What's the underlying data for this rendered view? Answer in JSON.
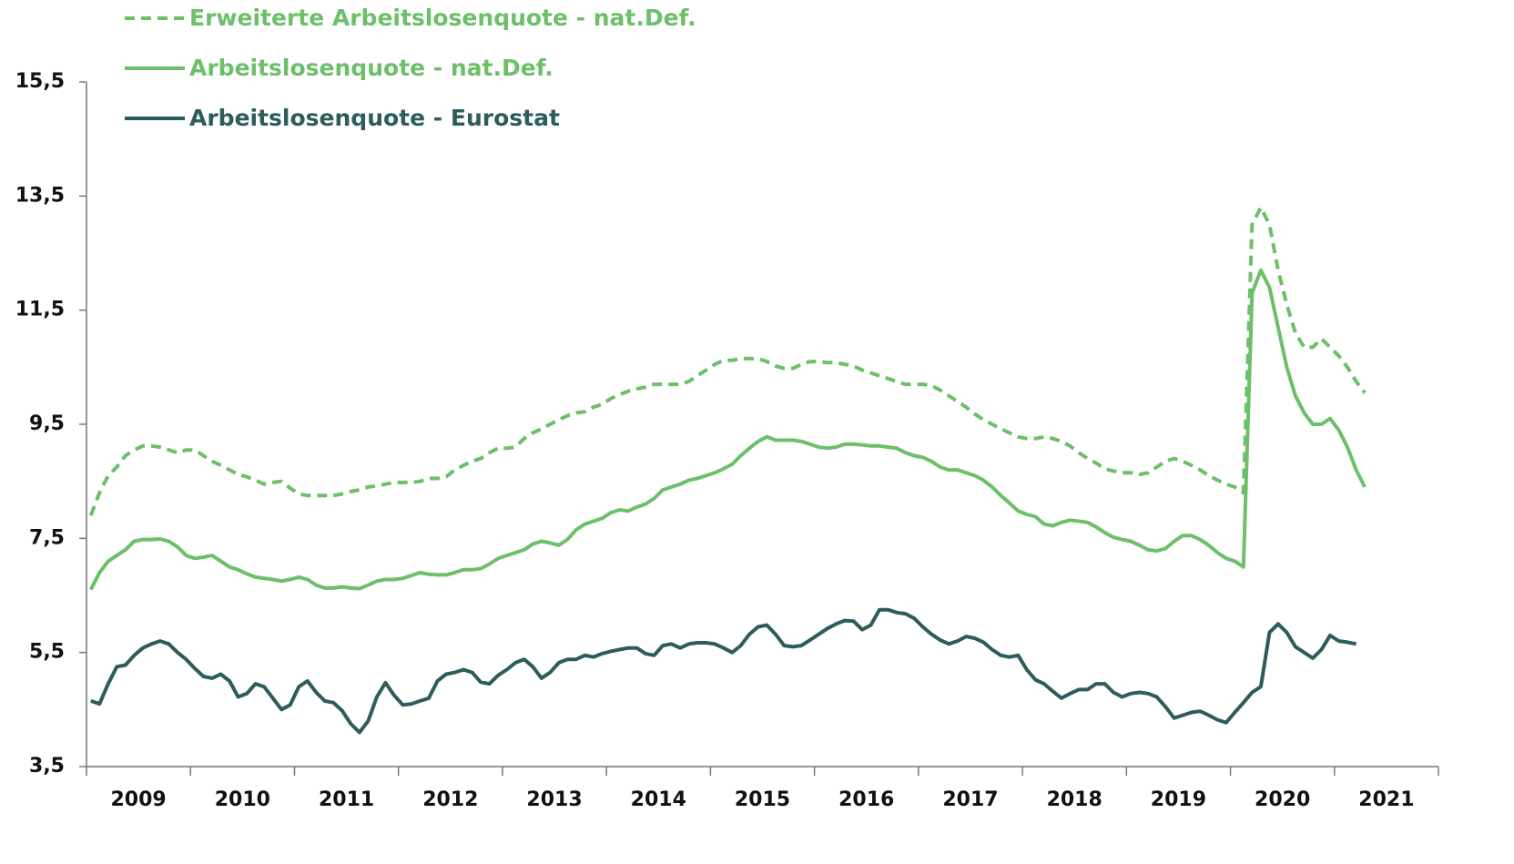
{
  "chart_data": {
    "type": "line",
    "categories": [
      "2009",
      null,
      null,
      null,
      null,
      null,
      null,
      null,
      null,
      null,
      null,
      null,
      "2010",
      null,
      null,
      null,
      null,
      null,
      null,
      null,
      null,
      null,
      null,
      null,
      "2011",
      null,
      null,
      null,
      null,
      null,
      null,
      null,
      null,
      null,
      null,
      null,
      "2012",
      null,
      null,
      null,
      null,
      null,
      null,
      null,
      null,
      null,
      null,
      null,
      "2013",
      null,
      null,
      null,
      null,
      null,
      null,
      null,
      null,
      null,
      null,
      null,
      "2014",
      null,
      null,
      null,
      null,
      null,
      null,
      null,
      null,
      null,
      null,
      null,
      "2015",
      null,
      null,
      null,
      null,
      null,
      null,
      null,
      null,
      null,
      null,
      null,
      "2016",
      null,
      null,
      null,
      null,
      null,
      null,
      null,
      null,
      null,
      null,
      null,
      "2017",
      null,
      null,
      null,
      null,
      null,
      null,
      null,
      null,
      null,
      null,
      null,
      "2018",
      null,
      null,
      null,
      null,
      null,
      null,
      null,
      null,
      null,
      null,
      null,
      "2019",
      null,
      null,
      null,
      null,
      null,
      null,
      null,
      null,
      null,
      null,
      null,
      "2020",
      null,
      null,
      null,
      null,
      null,
      null,
      null,
      null,
      null,
      null,
      null,
      "2021",
      null,
      null,
      null
    ],
    "ylim": [
      3.5,
      15.5
    ],
    "yticks": [
      {
        "value": 3.5,
        "label": "3,5"
      },
      {
        "value": 5.5,
        "label": "5,5"
      },
      {
        "value": 7.5,
        "label": "7,5"
      },
      {
        "value": 9.5,
        "label": "9,5"
      },
      {
        "value": 11.5,
        "label": "11,5"
      },
      {
        "value": 13.5,
        "label": "13,5"
      },
      {
        "value": 15.5,
        "label": "15,5"
      }
    ],
    "grid": false,
    "legend": "top-left",
    "series": [
      {
        "name": "Erweiterte Arbeitslosenquote - nat.Def.",
        "color": "#6dbf69",
        "style": "dashed",
        "values": [
          7.9,
          8.3,
          8.6,
          8.75,
          8.95,
          9.05,
          9.12,
          9.12,
          9.1,
          9.05,
          9.0,
          9.05,
          9.05,
          8.95,
          8.85,
          8.78,
          8.7,
          8.62,
          8.58,
          8.52,
          8.45,
          8.48,
          8.5,
          8.38,
          8.28,
          8.25,
          8.25,
          8.25,
          8.25,
          8.28,
          8.32,
          8.35,
          8.4,
          8.42,
          8.45,
          8.48,
          8.48,
          8.48,
          8.5,
          8.55,
          8.55,
          8.58,
          8.7,
          8.78,
          8.85,
          8.9,
          9.0,
          9.08,
          9.08,
          9.1,
          9.25,
          9.35,
          9.42,
          9.5,
          9.58,
          9.65,
          9.7,
          9.72,
          9.8,
          9.85,
          9.95,
          10.02,
          10.08,
          10.12,
          10.15,
          10.2,
          10.2,
          10.2,
          10.2,
          10.25,
          10.35,
          10.45,
          10.55,
          10.62,
          10.62,
          10.65,
          10.65,
          10.65,
          10.6,
          10.52,
          10.48,
          10.48,
          10.55,
          10.6,
          10.6,
          10.58,
          10.58,
          10.55,
          10.52,
          10.45,
          10.4,
          10.35,
          10.3,
          10.25,
          10.2,
          10.2,
          10.2,
          10.18,
          10.1,
          10.0,
          9.9,
          9.8,
          9.68,
          9.58,
          9.5,
          9.42,
          9.35,
          9.28,
          9.25,
          9.25,
          9.28,
          9.25,
          9.2,
          9.12,
          9.0,
          8.9,
          8.82,
          8.72,
          8.68,
          8.65,
          8.65,
          8.62,
          8.65,
          8.75,
          8.85,
          8.9,
          8.85,
          8.78,
          8.7,
          8.6,
          8.52,
          8.45,
          8.4,
          8.3,
          13.0,
          13.3,
          13.0,
          12.2,
          11.6,
          11.1,
          10.85,
          10.85,
          11.0,
          10.85,
          10.7,
          10.5,
          10.25,
          10.05
        ]
      },
      {
        "name": "Arbeitslosenquote - nat.Def.",
        "color": "#6dbf69",
        "style": "solid",
        "values": [
          6.6,
          6.9,
          7.1,
          7.2,
          7.3,
          7.45,
          7.48,
          7.48,
          7.49,
          7.45,
          7.35,
          7.2,
          7.15,
          7.17,
          7.2,
          7.1,
          7.0,
          6.95,
          6.88,
          6.82,
          6.8,
          6.78,
          6.75,
          6.78,
          6.82,
          6.78,
          6.68,
          6.63,
          6.63,
          6.65,
          6.63,
          6.62,
          6.68,
          6.75,
          6.78,
          6.78,
          6.8,
          6.85,
          6.9,
          6.87,
          6.86,
          6.86,
          6.9,
          6.95,
          6.95,
          6.97,
          7.05,
          7.15,
          7.2,
          7.25,
          7.3,
          7.4,
          7.45,
          7.42,
          7.38,
          7.48,
          7.65,
          7.75,
          7.8,
          7.85,
          7.95,
          8.0,
          7.98,
          8.05,
          8.1,
          8.2,
          8.35,
          8.4,
          8.45,
          8.52,
          8.55,
          8.6,
          8.65,
          8.72,
          8.8,
          8.95,
          9.08,
          9.2,
          9.28,
          9.22,
          9.22,
          9.22,
          9.2,
          9.15,
          9.1,
          9.08,
          9.1,
          9.15,
          9.15,
          9.14,
          9.12,
          9.12,
          9.1,
          9.08,
          9.0,
          8.95,
          8.92,
          8.85,
          8.75,
          8.7,
          8.7,
          8.65,
          8.6,
          8.52,
          8.4,
          8.25,
          8.12,
          7.98,
          7.92,
          7.88,
          7.75,
          7.72,
          7.78,
          7.82,
          7.8,
          7.78,
          7.7,
          7.6,
          7.52,
          7.48,
          7.45,
          7.38,
          7.3,
          7.28,
          7.32,
          7.45,
          7.55,
          7.55,
          7.48,
          7.38,
          7.25,
          7.15,
          7.1,
          7.0,
          11.8,
          12.2,
          11.9,
          11.2,
          10.5,
          10.0,
          9.7,
          9.5,
          9.5,
          9.6,
          9.4,
          9.1,
          8.7,
          8.4
        ]
      },
      {
        "name": "Arbeitslosenquote - Eurostat",
        "color": "#2d5c5c",
        "style": "solid",
        "values": [
          4.65,
          4.6,
          4.95,
          5.25,
          5.28,
          5.45,
          5.58,
          5.65,
          5.7,
          5.65,
          5.5,
          5.38,
          5.22,
          5.08,
          5.05,
          5.12,
          5.0,
          4.72,
          4.78,
          4.95,
          4.9,
          4.7,
          4.5,
          4.58,
          4.9,
          5.0,
          4.8,
          4.65,
          4.62,
          4.48,
          4.25,
          4.1,
          4.3,
          4.72,
          4.97,
          4.75,
          4.58,
          4.6,
          4.65,
          4.7,
          5.0,
          5.12,
          5.15,
          5.2,
          5.15,
          4.98,
          4.95,
          5.1,
          5.2,
          5.32,
          5.38,
          5.25,
          5.05,
          5.15,
          5.32,
          5.38,
          5.38,
          5.45,
          5.42,
          5.48,
          5.52,
          5.55,
          5.58,
          5.58,
          5.48,
          5.45,
          5.62,
          5.65,
          5.58,
          5.65,
          5.67,
          5.67,
          5.65,
          5.58,
          5.5,
          5.62,
          5.82,
          5.95,
          5.98,
          5.82,
          5.62,
          5.6,
          5.62,
          5.72,
          5.82,
          5.92,
          6.0,
          6.06,
          6.05,
          5.9,
          5.98,
          6.25,
          6.25,
          6.2,
          6.18,
          6.1,
          5.95,
          5.82,
          5.72,
          5.65,
          5.7,
          5.78,
          5.75,
          5.68,
          5.55,
          5.45,
          5.42,
          5.45,
          5.2,
          5.02,
          4.95,
          4.82,
          4.7,
          4.78,
          4.85,
          4.85,
          4.95,
          4.95,
          4.8,
          4.72,
          4.78,
          4.8,
          4.78,
          4.72,
          4.55,
          4.35,
          4.4,
          4.45,
          4.47,
          4.4,
          4.32,
          4.27,
          4.45,
          4.62,
          4.8,
          4.9,
          5.85,
          6.0,
          5.85,
          5.6,
          5.5,
          5.4,
          5.55,
          5.8,
          5.7,
          5.68,
          5.65,
          null
        ]
      }
    ]
  }
}
